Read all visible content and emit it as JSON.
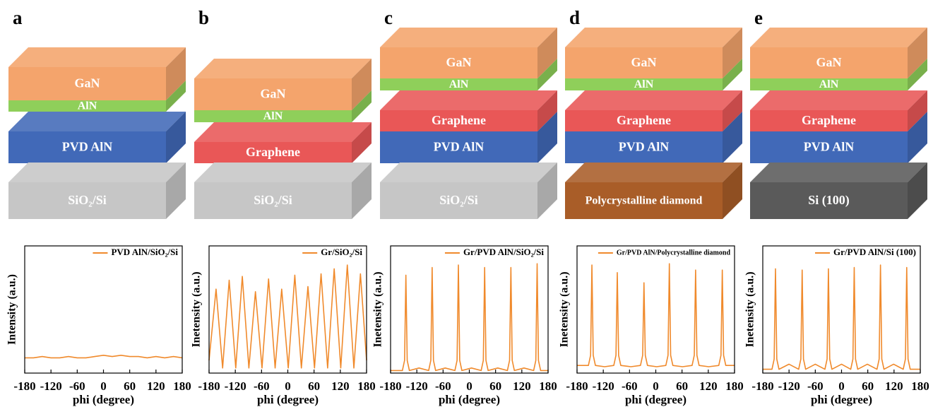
{
  "panels": [
    {
      "letter": "a",
      "layers": [
        {
          "label": "GaN",
          "color": "#f4a46c"
        },
        {
          "label": "AlN",
          "color": "#8fcf5a"
        },
        {
          "label": "PVD AlN",
          "color": "#4169b8"
        },
        {
          "label": "SiO₂/Si",
          "color": "#c6c6c6"
        }
      ]
    },
    {
      "letter": "b",
      "layers": [
        {
          "label": "GaN",
          "color": "#f4a46c"
        },
        {
          "label": "AlN",
          "color": "#8fcf5a"
        },
        {
          "label": "Graphene",
          "color": "#e95757"
        },
        {
          "label": "SiO₂/Si",
          "color": "#c6c6c6"
        }
      ]
    },
    {
      "letter": "c",
      "layers": [
        {
          "label": "GaN",
          "color": "#f4a46c"
        },
        {
          "label": "AlN",
          "color": "#8fcf5a"
        },
        {
          "label": "Graphene",
          "color": "#e95757"
        },
        {
          "label": "PVD AlN",
          "color": "#4169b8"
        },
        {
          "label": "SiO₂/Si",
          "color": "#c6c6c6"
        }
      ]
    },
    {
      "letter": "d",
      "layers": [
        {
          "label": "GaN",
          "color": "#f4a46c"
        },
        {
          "label": "AlN",
          "color": "#8fcf5a"
        },
        {
          "label": "Graphene",
          "color": "#e95757"
        },
        {
          "label": "PVD AlN",
          "color": "#4169b8"
        },
        {
          "label": "Polycrystalline diamond",
          "color": "#a95d28"
        }
      ]
    },
    {
      "letter": "e",
      "layers": [
        {
          "label": "GaN",
          "color": "#f4a46c"
        },
        {
          "label": "AlN",
          "color": "#8fcf5a"
        },
        {
          "label": "Graphene",
          "color": "#e95757"
        },
        {
          "label": "PVD AlN",
          "color": "#4169b8"
        },
        {
          "label": "Si (100)",
          "color": "#5a5a5a"
        }
      ]
    }
  ],
  "chart_data": [
    {
      "type": "line",
      "x_label": "phi (degree)",
      "y_label": "Intensity (a.u.)",
      "xlim": [
        -180,
        180
      ],
      "xticks": [
        -180,
        -120,
        -60,
        0,
        60,
        120,
        180
      ],
      "ylim": [
        0,
        100
      ],
      "x": [
        -180,
        -160,
        -140,
        -120,
        -100,
        -80,
        -60,
        -40,
        -20,
        0,
        20,
        40,
        60,
        80,
        100,
        120,
        140,
        160,
        180
      ],
      "series": [
        {
          "name": "PVD AlN/SiO₂/Si",
          "color": "#f08a2c",
          "values": [
            12,
            12,
            13,
            12,
            12,
            13,
            12,
            12,
            13,
            14,
            13,
            14,
            13,
            13,
            12,
            13,
            12,
            13,
            12
          ]
        }
      ]
    },
    {
      "type": "line",
      "x_label": "phi (degree)",
      "y_label": "Inetensity (a.u.)",
      "xlim": [
        -180,
        180
      ],
      "xticks": [
        -180,
        -120,
        -60,
        0,
        60,
        120,
        180
      ],
      "ylim": [
        0,
        100
      ],
      "x": [
        -180,
        -164,
        -149,
        -134,
        -119,
        -104,
        -89,
        -74,
        -59,
        -44,
        -29,
        -14,
        1,
        16,
        31,
        46,
        61,
        76,
        91,
        106,
        121,
        136,
        151,
        166,
        180
      ],
      "series": [
        {
          "name": "Gr/SiO₂/Si",
          "color": "#f08a2c",
          "values": [
            10,
            66,
            4,
            73,
            4,
            76,
            4,
            64,
            4,
            74,
            4,
            66,
            4,
            77,
            4,
            68,
            4,
            78,
            4,
            82,
            4,
            85,
            4,
            78,
            10
          ]
        }
      ]
    },
    {
      "type": "line",
      "x_label": "phi (degree)",
      "y_label": "Inetensity (a.u.)",
      "xlim": [
        -180,
        180
      ],
      "xticks": [
        -180,
        -120,
        -60,
        0,
        60,
        120,
        180
      ],
      "ylim": [
        0,
        100
      ],
      "x": [
        -180,
        -153,
        -148,
        -145,
        -142,
        -137,
        -115,
        -93,
        -88,
        -85,
        -82,
        -77,
        -55,
        -33,
        -28,
        -25,
        -22,
        -17,
        5,
        27,
        32,
        35,
        38,
        43,
        65,
        87,
        92,
        95,
        98,
        103,
        125,
        147,
        152,
        155,
        158,
        163,
        180
      ],
      "series": [
        {
          "name": "Gr/PVD AlN/SiO₂/Si",
          "color": "#f08a2c",
          "values": [
            2,
            2,
            10,
            77,
            10,
            2,
            4,
            2,
            10,
            83,
            10,
            2,
            4,
            2,
            10,
            85,
            10,
            2,
            4,
            2,
            10,
            83,
            10,
            2,
            4,
            2,
            10,
            83,
            10,
            2,
            4,
            2,
            10,
            86,
            10,
            2,
            2
          ]
        }
      ]
    },
    {
      "type": "line",
      "x_label": "phi (degree)",
      "y_label": "Inetensity (a.u.)",
      "xlim": [
        -180,
        180
      ],
      "xticks": [
        -180,
        -120,
        -60,
        0,
        60,
        120,
        180
      ],
      "ylim": [
        0,
        100
      ],
      "x": [
        -180,
        -154,
        -149,
        -146,
        -143,
        -138,
        -117,
        -96,
        -91,
        -88,
        -85,
        -80,
        -57,
        -35,
        -30,
        -27,
        -24,
        -19,
        2,
        23,
        28,
        31,
        34,
        39,
        61,
        83,
        88,
        91,
        94,
        99,
        121,
        144,
        149,
        152,
        155,
        160,
        180
      ],
      "series": [
        {
          "name": "Gr/PVD AlN/Polycrystalline diamond",
          "color": "#f08a2c",
          "values": [
            6,
            6,
            14,
            85,
            14,
            6,
            5,
            6,
            14,
            79,
            14,
            6,
            5,
            6,
            14,
            71,
            14,
            6,
            5,
            6,
            14,
            86,
            14,
            6,
            5,
            6,
            14,
            81,
            14,
            6,
            5,
            6,
            14,
            81,
            14,
            6,
            6
          ]
        }
      ]
    },
    {
      "type": "line",
      "x_label": "phi (degree)",
      "y_label": "Inetensity (a.u.)",
      "xlim": [
        -180,
        180
      ],
      "xticks": [
        -180,
        -120,
        -60,
        0,
        60,
        120,
        180
      ],
      "ylim": [
        0,
        100
      ],
      "x": [
        -180,
        -159,
        -154,
        -151,
        -148,
        -143,
        -120,
        -98,
        -93,
        -90,
        -87,
        -82,
        -60,
        -38,
        -33,
        -30,
        -27,
        -22,
        0,
        21,
        26,
        29,
        32,
        37,
        59,
        81,
        86,
        89,
        92,
        97,
        119,
        141,
        146,
        149,
        152,
        157,
        180
      ],
      "series": [
        {
          "name": "Gr/PVD AlN/Si (100)",
          "color": "#f08a2c",
          "values": [
            3,
            3,
            11,
            82,
            11,
            3,
            7,
            3,
            11,
            81,
            11,
            3,
            7,
            3,
            11,
            82,
            11,
            3,
            7,
            3,
            11,
            83,
            11,
            3,
            7,
            3,
            11,
            85,
            11,
            3,
            7,
            3,
            11,
            83,
            11,
            3,
            3
          ]
        }
      ]
    }
  ]
}
